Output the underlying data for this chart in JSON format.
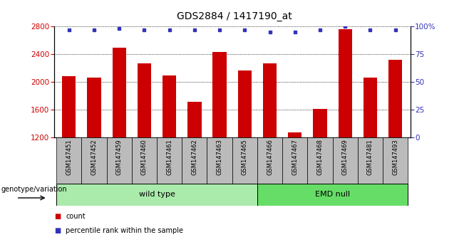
{
  "title": "GDS2884 / 1417190_at",
  "samples": [
    "GSM147451",
    "GSM147452",
    "GSM147459",
    "GSM147460",
    "GSM147461",
    "GSM147462",
    "GSM147463",
    "GSM147465",
    "GSM147466",
    "GSM147467",
    "GSM147468",
    "GSM147469",
    "GSM147481",
    "GSM147493"
  ],
  "counts": [
    2080,
    2060,
    2490,
    2270,
    2090,
    1710,
    2430,
    2160,
    2270,
    1270,
    1610,
    2760,
    2060,
    2320
  ],
  "percentile_ranks": [
    97,
    97,
    98,
    97,
    97,
    97,
    97,
    97,
    95,
    95,
    97,
    100,
    97,
    97
  ],
  "ylim_left": [
    1200,
    2800
  ],
  "ylim_right": [
    0,
    100
  ],
  "yticks_left": [
    1200,
    1600,
    2000,
    2400,
    2800
  ],
  "yticks_right": [
    0,
    25,
    50,
    75,
    100
  ],
  "grid_values": [
    1600,
    2000,
    2400
  ],
  "bar_color": "#cc0000",
  "dot_color": "#3333bb",
  "wild_type_count": 8,
  "emd_null_count": 6,
  "group_wild_type": "wild type",
  "group_emd_null": "EMD null",
  "group_label": "genotype/variation",
  "legend_count_label": "count",
  "legend_percentile_label": "percentile rank within the sample",
  "wild_type_color": "#aaeaaa",
  "emd_null_color": "#66dd66",
  "sample_bg_color": "#bbbbbb",
  "title_fontsize": 10,
  "tick_fontsize": 7.5,
  "label_fontsize": 7.5
}
